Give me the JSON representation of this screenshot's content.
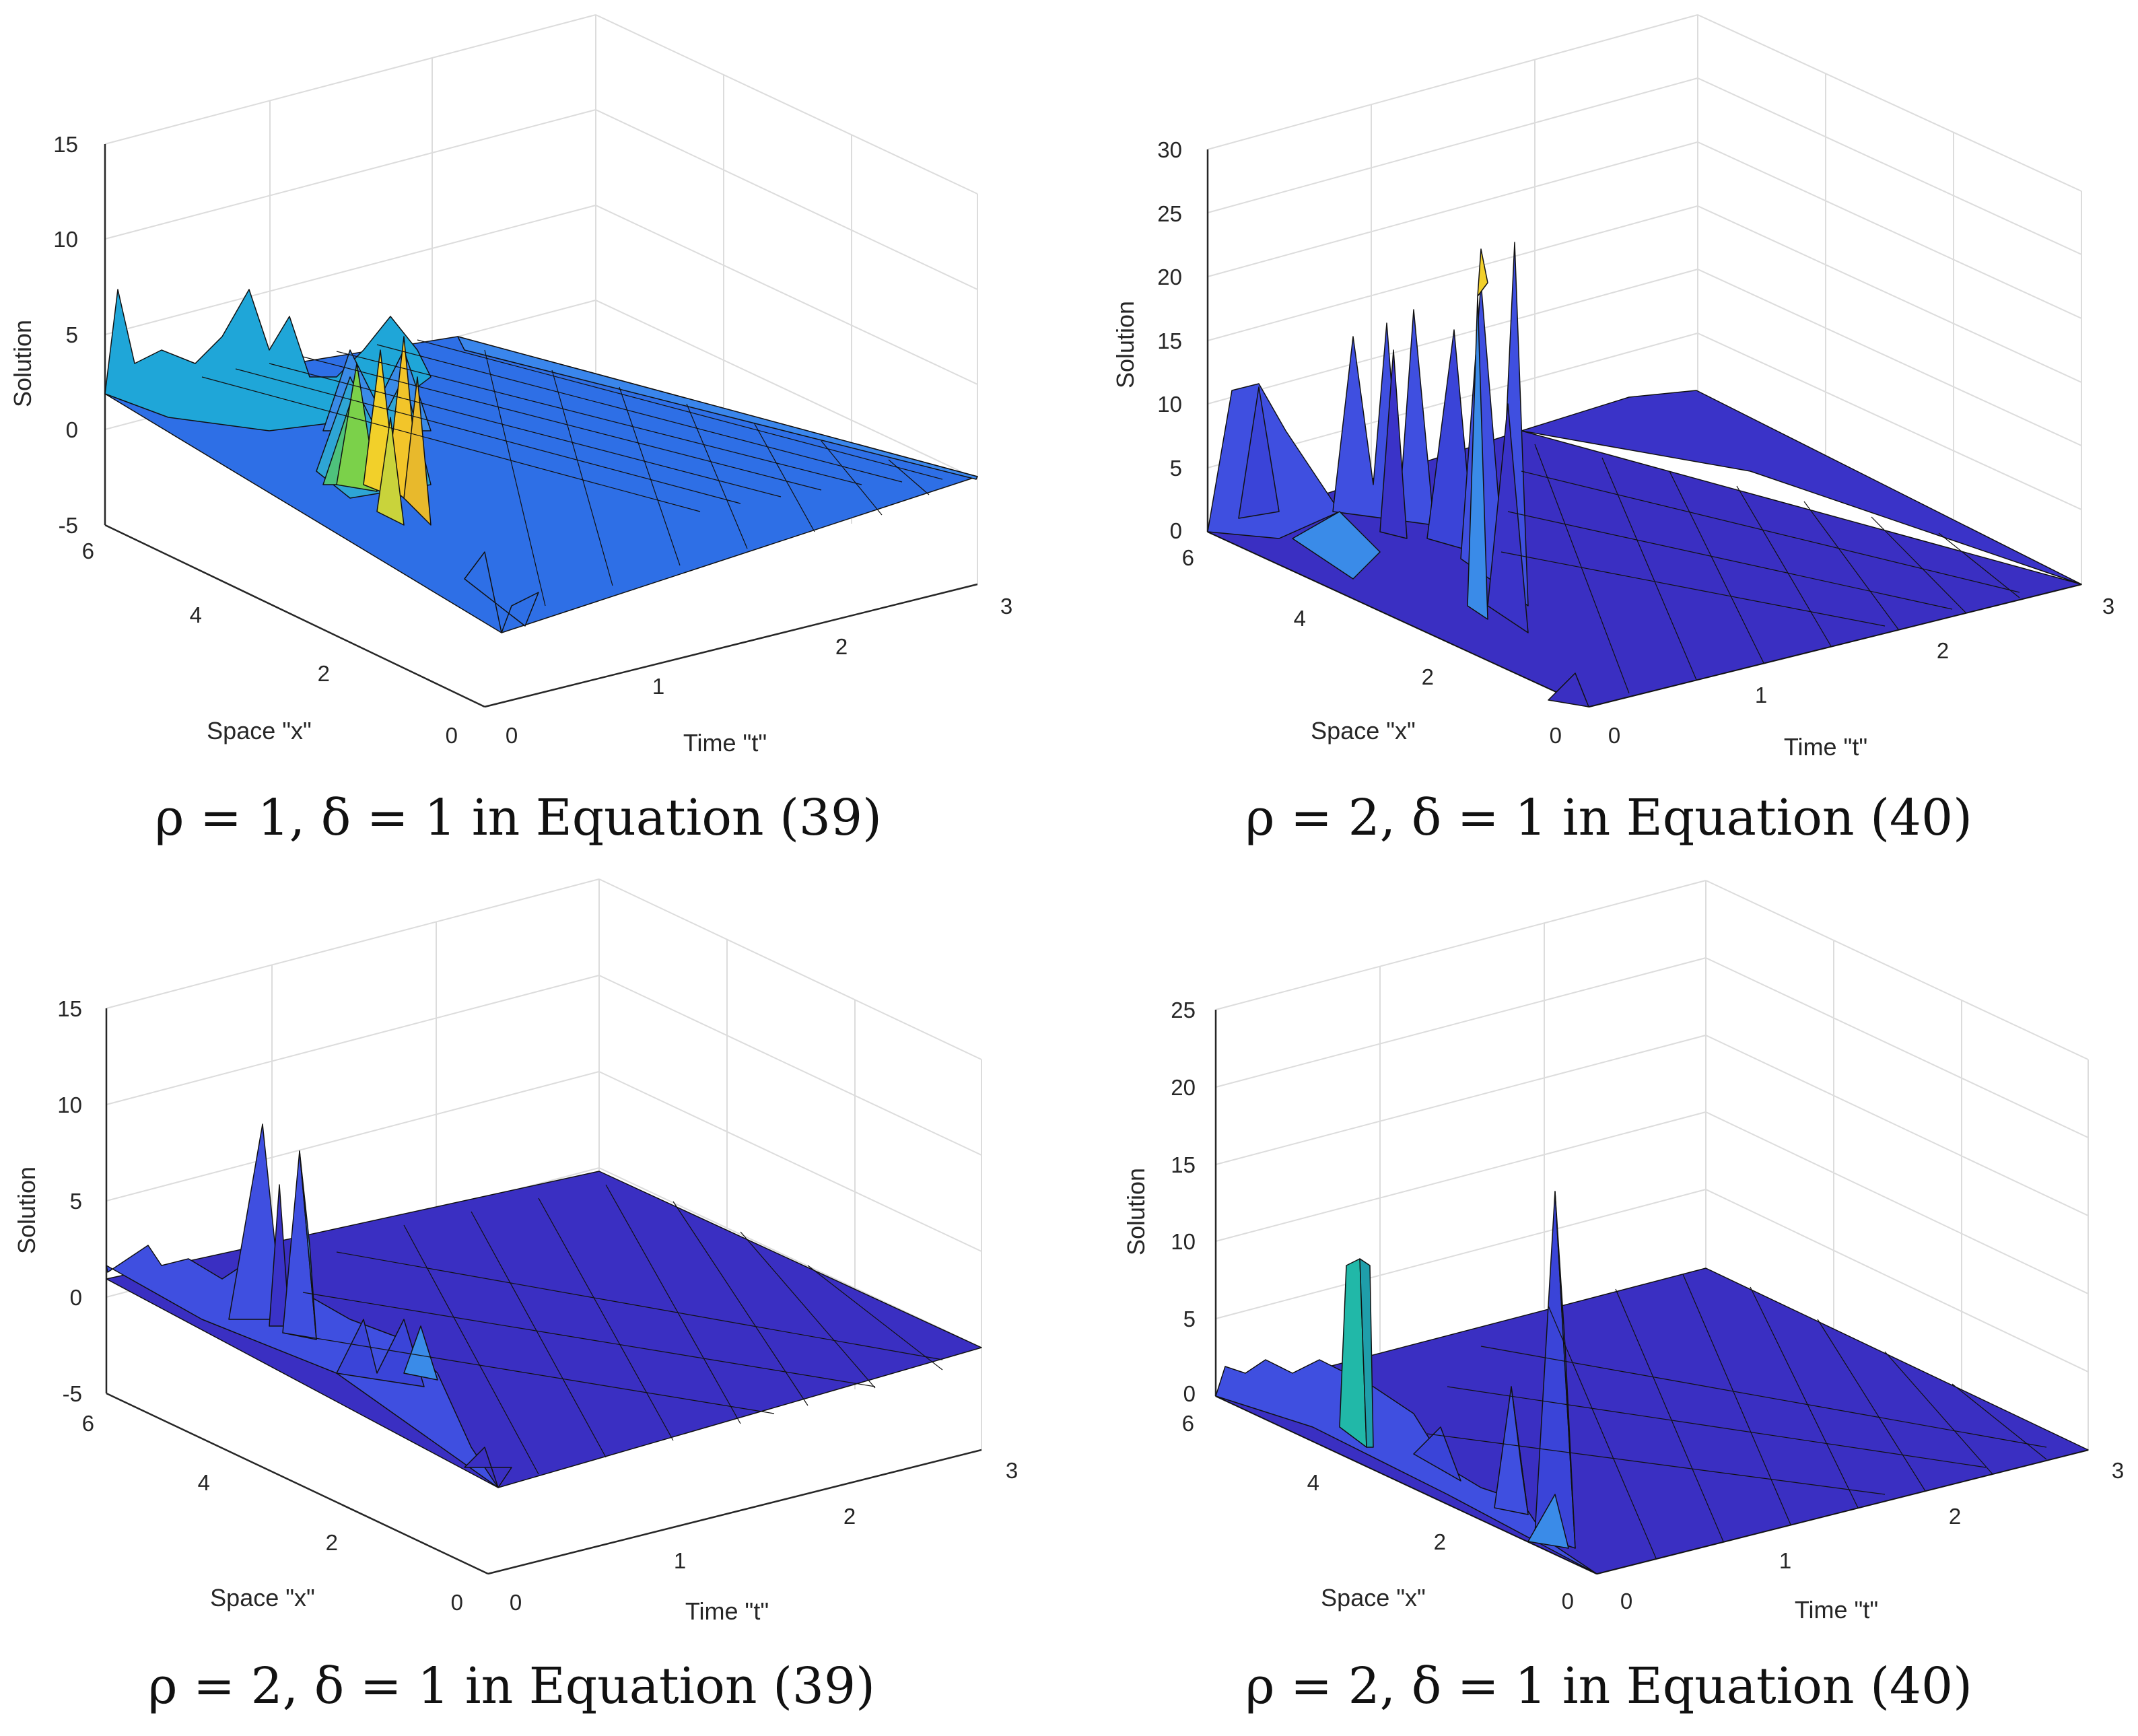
{
  "charts": [
    {
      "type": "surface",
      "xlabel": "Time \"t\"",
      "ylabel": "Space \"x\"",
      "zlabel": "Solution",
      "zlim": [
        -5,
        15
      ],
      "zticks": [
        "-5",
        "0",
        "5",
        "10",
        "15"
      ],
      "xticks": [
        "0",
        "1",
        "2",
        "3"
      ],
      "yticks": [
        "0",
        "2",
        "4",
        "6"
      ],
      "caption": "ρ = 1, δ = 1 in Equation (39)",
      "colormap": [
        "#2e6fe6",
        "#1fa6d8",
        "#7bd14a",
        "#f2d02a"
      ]
    },
    {
      "type": "surface",
      "xlabel": "Time \"t\"",
      "ylabel": "Space \"x\"",
      "zlabel": "Solution",
      "zlim": [
        0,
        30
      ],
      "zticks": [
        "0",
        "5",
        "10",
        "15",
        "20",
        "25",
        "30"
      ],
      "xticks": [
        "0",
        "1",
        "2",
        "3"
      ],
      "yticks": [
        "0",
        "2",
        "4",
        "6"
      ],
      "caption": "ρ = 2, δ = 1 in Equation (40)",
      "colormap": [
        "#3a2fc2",
        "#3f4fe0",
        "#3a8be8",
        "#f2d02a"
      ]
    },
    {
      "type": "surface",
      "xlabel": "Time \"t\"",
      "ylabel": "Space \"x\"",
      "zlabel": "Solution",
      "zlim": [
        -5,
        15
      ],
      "zticks": [
        "-5",
        "0",
        "5",
        "10",
        "15"
      ],
      "xticks": [
        "0",
        "1",
        "2",
        "3"
      ],
      "yticks": [
        "0",
        "2",
        "4",
        "6"
      ],
      "caption": "ρ = 2, δ = 1 in Equation (39)",
      "colormap": [
        "#3a2fc2",
        "#3f4fe0",
        "#3a8be8"
      ]
    },
    {
      "type": "surface",
      "xlabel": "Time \"t\"",
      "ylabel": "Space \"x\"",
      "zlabel": "Solution",
      "zlim": [
        0,
        25
      ],
      "zticks": [
        "0",
        "5",
        "10",
        "15",
        "20",
        "25"
      ],
      "xticks": [
        "0",
        "1",
        "2",
        "3"
      ],
      "yticks": [
        "0",
        "2",
        "4",
        "6"
      ],
      "caption": "ρ = 2, δ = 1 in Equation (40)",
      "colormap": [
        "#3a2fc2",
        "#3f4fe0",
        "#21b8a8"
      ]
    }
  ],
  "chart_data": [
    {
      "type": "surface",
      "title": "ρ = 1, δ = 1 in Equation (39)",
      "x_range": [
        0,
        3
      ],
      "y_range": [
        0,
        6
      ],
      "z_range": [
        -5,
        15
      ],
      "peaks": [
        {
          "t": 0.0,
          "x": 5.8,
          "z": 5
        },
        {
          "t": 0.3,
          "x": 4.3,
          "z": 5
        },
        {
          "t": 0.6,
          "x": 4.2,
          "z": 5
        },
        {
          "t": 0.45,
          "x": 2.4,
          "z": 4
        },
        {
          "t": 0.5,
          "x": 2.2,
          "z": 5
        },
        {
          "t": 0.6,
          "x": 1.9,
          "z": 5
        },
        {
          "t": 0.7,
          "x": 1.2,
          "z": -4
        }
      ]
    },
    {
      "type": "surface",
      "title": "ρ = 2, δ = 1 in Equation (40)",
      "x_range": [
        0,
        3
      ],
      "y_range": [
        0,
        6
      ],
      "z_range": [
        0,
        30
      ],
      "peaks": [
        {
          "t": 0.05,
          "x": 5.3,
          "z": 12
        },
        {
          "t": 0.3,
          "x": 4.0,
          "z": 17
        },
        {
          "t": 0.35,
          "x": 3.8,
          "z": 18
        },
        {
          "t": 0.5,
          "x": 3.6,
          "z": 19
        },
        {
          "t": 0.5,
          "x": 2.2,
          "z": 19
        },
        {
          "t": 0.55,
          "x": 2.0,
          "z": 24
        }
      ]
    },
    {
      "type": "surface",
      "title": "ρ = 2, δ = 1 in Equation (39)",
      "x_range": [
        0,
        3
      ],
      "y_range": [
        0,
        6
      ],
      "z_range": [
        -5,
        15
      ],
      "peaks": [
        {
          "t": 0.3,
          "x": 3.5,
          "z": 9
        },
        {
          "t": 0.35,
          "x": 3.4,
          "z": 6
        },
        {
          "t": 0.4,
          "x": 3.2,
          "z": 8
        },
        {
          "t": 0.7,
          "x": 1.2,
          "z": -2
        }
      ]
    },
    {
      "type": "surface",
      "title": "ρ = 2, δ = 1 in Equation (40)",
      "x_range": [
        0,
        3
      ],
      "y_range": [
        0,
        6
      ],
      "z_range": [
        0,
        25
      ],
      "peaks": [
        {
          "t": 0.3,
          "x": 4.5,
          "z": 7
        },
        {
          "t": 0.7,
          "x": 1.5,
          "z": 7
        },
        {
          "t": 0.8,
          "x": 1.2,
          "z": 15
        }
      ]
    }
  ]
}
